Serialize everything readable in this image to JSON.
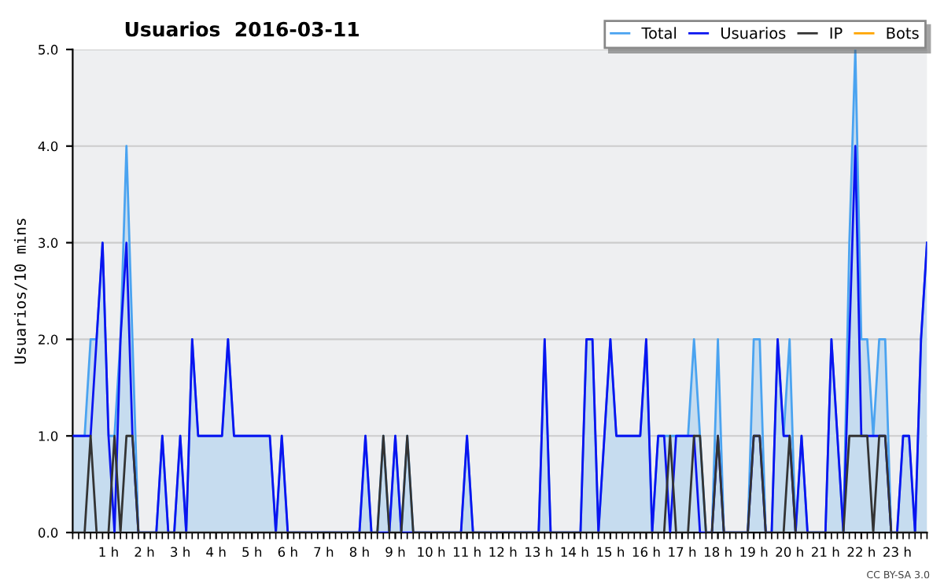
{
  "chart_data": {
    "type": "line",
    "title": "Usuarios  2016-03-11",
    "ylabel": "Usuarios/10 mins",
    "categories": [
      null,
      null,
      null,
      null,
      null,
      null,
      "1 h",
      null,
      null,
      null,
      null,
      null,
      "2 h",
      null,
      null,
      null,
      null,
      null,
      "3 h",
      null,
      null,
      null,
      null,
      null,
      "4 h",
      null,
      null,
      null,
      null,
      null,
      "5 h",
      null,
      null,
      null,
      null,
      null,
      "6 h",
      null,
      null,
      null,
      null,
      null,
      "7 h",
      null,
      null,
      null,
      null,
      null,
      "8 h",
      null,
      null,
      null,
      null,
      null,
      "9 h",
      null,
      null,
      null,
      null,
      null,
      "10 h",
      null,
      null,
      null,
      null,
      null,
      "11 h",
      null,
      null,
      null,
      null,
      null,
      "12 h",
      null,
      null,
      null,
      null,
      null,
      "13 h",
      null,
      null,
      null,
      null,
      null,
      "14 h",
      null,
      null,
      null,
      null,
      null,
      "15 h",
      null,
      null,
      null,
      null,
      null,
      "16 h",
      null,
      null,
      null,
      null,
      null,
      "17 h",
      null,
      null,
      null,
      null,
      null,
      "18 h",
      null,
      null,
      null,
      null,
      null,
      "19 h",
      null,
      null,
      null,
      null,
      null,
      "20 h",
      null,
      null,
      null,
      null,
      null,
      "21 h",
      null,
      null,
      null,
      null,
      null,
      "22 h",
      null,
      null,
      null,
      null,
      null,
      "23 h",
      null,
      null,
      null,
      null,
      null
    ],
    "series": [
      {
        "name": "Total",
        "type": "area",
        "color": "#4aa3f0",
        "values": [
          1,
          1,
          1,
          2,
          2,
          3,
          1,
          1,
          2,
          4,
          2,
          0,
          0,
          0,
          0,
          1,
          0,
          0,
          1,
          0,
          2,
          1,
          1,
          1,
          1,
          1,
          2,
          1,
          1,
          1,
          1,
          1,
          1,
          1,
          0,
          1,
          0,
          0,
          0,
          0,
          0,
          0,
          0,
          0,
          0,
          0,
          0,
          0,
          0,
          1,
          0,
          0,
          1,
          0,
          1,
          0,
          1,
          0,
          0,
          0,
          0,
          0,
          0,
          0,
          0,
          0,
          1,
          0,
          0,
          0,
          0,
          0,
          0,
          0,
          0,
          0,
          0,
          0,
          0,
          2,
          0,
          0,
          0,
          0,
          0,
          0,
          2,
          2,
          0,
          1,
          2,
          1,
          1,
          1,
          1,
          1,
          2,
          0,
          1,
          1,
          1,
          1,
          1,
          1,
          2,
          1,
          0,
          0,
          2,
          0,
          0,
          0,
          0,
          0,
          2,
          2,
          0,
          0,
          2,
          1,
          2,
          0,
          1,
          0,
          0,
          0,
          0,
          2,
          1,
          0,
          3,
          5,
          2,
          2,
          1,
          2,
          2,
          0,
          0,
          1,
          1,
          0,
          2,
          3
        ]
      },
      {
        "name": "Usuarios",
        "color": "#0a14f0",
        "values": [
          1,
          1,
          1,
          1,
          2,
          3,
          1,
          0,
          2,
          3,
          1,
          0,
          0,
          0,
          0,
          1,
          0,
          0,
          1,
          0,
          2,
          1,
          1,
          1,
          1,
          1,
          2,
          1,
          1,
          1,
          1,
          1,
          1,
          1,
          0,
          1,
          0,
          0,
          0,
          0,
          0,
          0,
          0,
          0,
          0,
          0,
          0,
          0,
          0,
          1,
          0,
          0,
          0,
          0,
          1,
          0,
          0,
          0,
          0,
          0,
          0,
          0,
          0,
          0,
          0,
          0,
          1,
          0,
          0,
          0,
          0,
          0,
          0,
          0,
          0,
          0,
          0,
          0,
          0,
          2,
          0,
          0,
          0,
          0,
          0,
          0,
          2,
          2,
          0,
          1,
          2,
          1,
          1,
          1,
          1,
          1,
          2,
          0,
          1,
          1,
          0,
          1,
          1,
          1,
          1,
          0,
          0,
          0,
          1,
          0,
          0,
          0,
          0,
          0,
          1,
          1,
          0,
          0,
          2,
          1,
          1,
          0,
          1,
          0,
          0,
          0,
          0,
          2,
          1,
          0,
          2,
          4,
          1,
          1,
          1,
          1,
          1,
          0,
          0,
          1,
          1,
          0,
          2,
          3
        ]
      },
      {
        "name": "IP",
        "color": "#333333",
        "values": [
          0,
          0,
          0,
          1,
          0,
          0,
          0,
          1,
          0,
          1,
          1,
          0,
          0,
          0,
          0,
          0,
          0,
          0,
          0,
          0,
          0,
          0,
          0,
          0,
          0,
          0,
          0,
          0,
          0,
          0,
          0,
          0,
          0,
          0,
          0,
          0,
          0,
          0,
          0,
          0,
          0,
          0,
          0,
          0,
          0,
          0,
          0,
          0,
          0,
          0,
          0,
          0,
          1,
          0,
          0,
          0,
          1,
          0,
          0,
          0,
          0,
          0,
          0,
          0,
          0,
          0,
          0,
          0,
          0,
          0,
          0,
          0,
          0,
          0,
          0,
          0,
          0,
          0,
          0,
          0,
          0,
          0,
          0,
          0,
          0,
          0,
          0,
          0,
          0,
          0,
          0,
          0,
          0,
          0,
          0,
          0,
          0,
          0,
          0,
          0,
          1,
          0,
          0,
          0,
          1,
          1,
          0,
          0,
          1,
          0,
          0,
          0,
          0,
          0,
          1,
          1,
          0,
          0,
          0,
          0,
          1,
          0,
          0,
          0,
          0,
          0,
          0,
          0,
          0,
          0,
          1,
          1,
          1,
          1,
          0,
          1,
          1,
          0,
          0,
          0,
          0,
          0,
          0,
          0
        ]
      },
      {
        "name": "Bots",
        "color": "#ffa500",
        "values": [
          null,
          null,
          null,
          null,
          null,
          null,
          null,
          null,
          null,
          null,
          null,
          null,
          null,
          null,
          null,
          null,
          null,
          null,
          null,
          null,
          null,
          null,
          null,
          null,
          null,
          null,
          null,
          null,
          null,
          null,
          null,
          null,
          null,
          null,
          null,
          null,
          null,
          null,
          null,
          null,
          null,
          null,
          null,
          null,
          null,
          null,
          null,
          null,
          null,
          null,
          null,
          null,
          null,
          null,
          null,
          null,
          null,
          null,
          null,
          null,
          null,
          null,
          null,
          null,
          null,
          null,
          null,
          null,
          null,
          null,
          null,
          null,
          null,
          null,
          null,
          null,
          null,
          null,
          null,
          null,
          null,
          null,
          null,
          null,
          null,
          null,
          null,
          null,
          null,
          null,
          null,
          null,
          null,
          null,
          null,
          null,
          null,
          null,
          null,
          null,
          null,
          null,
          null,
          null,
          null,
          null,
          null,
          null,
          null,
          null,
          null,
          null,
          null,
          null,
          null,
          null,
          null,
          null,
          null,
          null,
          null,
          null,
          null,
          null,
          null,
          null,
          null,
          null,
          null,
          null,
          null,
          null,
          null,
          null,
          null,
          null,
          null,
          null,
          null,
          null,
          null,
          null,
          null,
          null
        ]
      }
    ],
    "ylim": [
      0,
      5
    ],
    "yticks": [
      {
        "value": 0,
        "label": "0.0"
      },
      {
        "value": 1,
        "label": "1.0"
      },
      {
        "value": 2,
        "label": "2.0"
      },
      {
        "value": 3,
        "label": "3.0"
      },
      {
        "value": 4,
        "label": "4.0"
      },
      {
        "value": 5,
        "label": "5.0"
      }
    ],
    "grid": "y",
    "legend": "top right",
    "annotations": [
      "CC BY-SA 3.0"
    ]
  }
}
